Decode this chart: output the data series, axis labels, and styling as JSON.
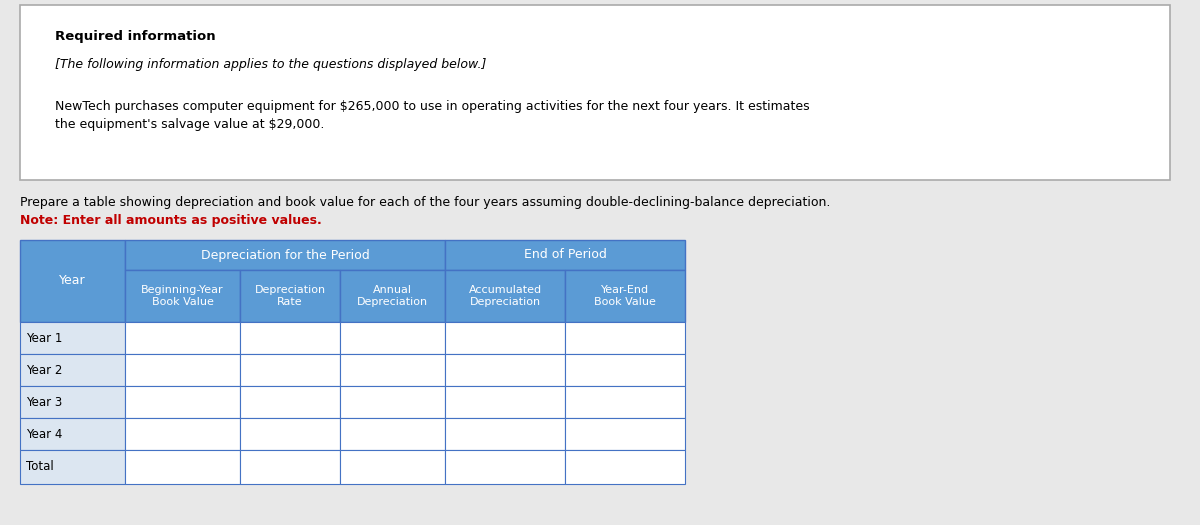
{
  "required_info_bold": "Required information",
  "italic_line": "[The following information applies to the questions displayed below.]",
  "body_line1": "NewTech purchases computer equipment for $265,000 to use in operating activities for the next four years. It estimates",
  "body_line2": "the equipment's salvage value at $29,000.",
  "prepare_text": "Prepare a table showing depreciation and book value for each of the four years assuming double-declining-balance depreciation.",
  "note_text": "Note: Enter all amounts as positive values.",
  "table_header_group1": "Depreciation for the Period",
  "table_header_group2": "End of Period",
  "col_headers": [
    "Beginning-Year\nBook Value",
    "Depreciation\nRate",
    "Annual\nDepreciation",
    "Accumulated\nDepreciation",
    "Year-End\nBook Value"
  ],
  "row_labels": [
    "Year",
    "Year 1",
    "Year 2",
    "Year 3",
    "Year 4",
    "Total"
  ],
  "header_bg_color": "#5b9bd5",
  "header_text_color": "#ffffff",
  "year_col_bg": "#dce6f1",
  "data_cell_bg": "#ffffff",
  "border_color": "#4472c4",
  "outer_box_bg": "#ffffff",
  "outer_box_border": "#aaaaaa",
  "page_bg": "#e8e8e8",
  "note_color": "#c00000",
  "body_bg": "#ffffff"
}
